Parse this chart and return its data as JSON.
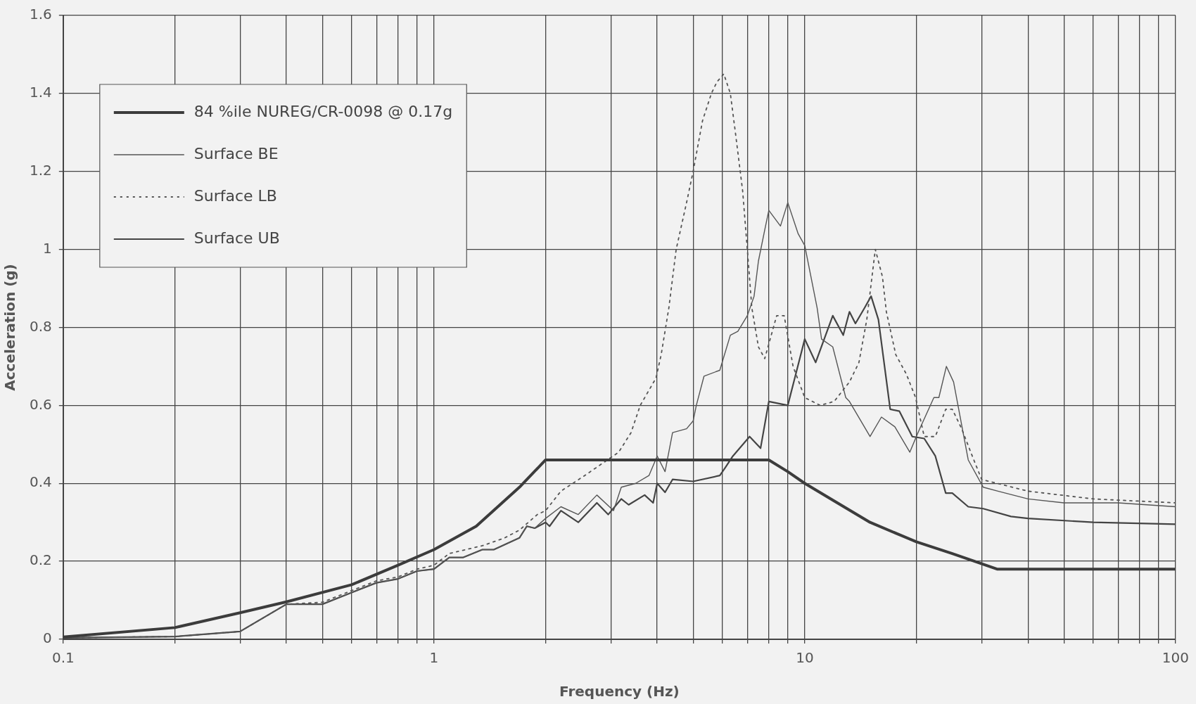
{
  "chart_data": {
    "type": "line",
    "xlabel": "Frequency (Hz)",
    "ylabel": "Acceleration (g)",
    "log": "x",
    "grid": true,
    "legend": "top left",
    "xlim": [
      0.1,
      100
    ],
    "ylim": [
      0,
      1.6
    ],
    "xticks": [
      0.1,
      {
        "value": 0.2,
        "label": null
      },
      {
        "value": 0.3,
        "label": null
      },
      {
        "value": 0.4,
        "label": null
      },
      {
        "value": 0.5,
        "label": null
      },
      {
        "value": 0.6,
        "label": null
      },
      {
        "value": 0.7,
        "label": null
      },
      {
        "value": 0.8,
        "label": null
      },
      {
        "value": 0.9,
        "label": null
      },
      1,
      {
        "value": 2,
        "label": null
      },
      {
        "value": 3,
        "label": null
      },
      {
        "value": 4,
        "label": null
      },
      {
        "value": 5,
        "label": null
      },
      {
        "value": 6,
        "label": null
      },
      {
        "value": 7,
        "label": null
      },
      {
        "value": 8,
        "label": null
      },
      {
        "value": 9,
        "label": null
      },
      10,
      {
        "value": 20,
        "label": null
      },
      {
        "value": 30,
        "label": null
      },
      {
        "value": 40,
        "label": null
      },
      {
        "value": 50,
        "label": null
      },
      {
        "value": 60,
        "label": null
      },
      {
        "value": 70,
        "label": null
      },
      {
        "value": 80,
        "label": null
      },
      {
        "value": 90,
        "label": null
      },
      100
    ],
    "yticks": [
      0,
      0.2,
      0.4,
      0.6,
      0.8,
      1,
      1.2,
      1.4,
      1.6
    ],
    "series": [
      {
        "name": "84 %ile NUREG/CR-0098 @ 0.17g",
        "color": "#3c3c3c",
        "line_style": "solid",
        "x": [
          0.1,
          0.2,
          0.3,
          0.4,
          0.6,
          0.8,
          1,
          1.3,
          1.7,
          2,
          8,
          9,
          10,
          12,
          15,
          20,
          25,
          33,
          100
        ],
        "values": [
          0.006,
          0.03,
          0.068,
          0.096,
          0.14,
          0.19,
          0.23,
          0.29,
          0.39,
          0.46,
          0.46,
          0.43,
          0.4,
          0.355,
          0.3,
          0.25,
          0.22,
          0.18,
          0.18
        ]
      },
      {
        "name": "Surface BE",
        "color": "#555555",
        "line_style": "solid",
        "x": [
          0.1,
          0.2,
          0.3,
          0.4,
          0.5,
          0.6,
          0.7,
          0.8,
          0.9,
          1,
          1.1,
          1.2,
          1.35,
          1.45,
          1.7,
          1.78,
          1.87,
          2,
          2.2,
          2.45,
          2.75,
          3.05,
          3.2,
          3.5,
          3.8,
          4,
          4.2,
          4.4,
          4.8,
          5,
          5.1,
          5.35,
          5.9,
          6.3,
          6.6,
          7,
          7.3,
          7.5,
          7.8,
          8,
          8.6,
          9,
          9.6,
          10,
          10.8,
          11.1,
          11.9,
          12.9,
          13.2,
          15,
          16.1,
          17.5,
          19.2,
          20.2,
          22.3,
          23,
          24.1,
          25.2,
          27.6,
          30.3,
          33.2,
          40,
          50,
          70,
          100
        ],
        "values": [
          0.004,
          0.007,
          0.02,
          0.09,
          0.09,
          0.12,
          0.145,
          0.155,
          0.175,
          0.18,
          0.21,
          0.21,
          0.23,
          0.23,
          0.26,
          0.29,
          0.285,
          0.31,
          0.34,
          0.32,
          0.37,
          0.33,
          0.39,
          0.4,
          0.42,
          0.47,
          0.43,
          0.53,
          0.54,
          0.56,
          0.6,
          0.675,
          0.69,
          0.78,
          0.79,
          0.83,
          0.88,
          0.97,
          1.05,
          1.1,
          1.06,
          1.12,
          1.04,
          1.01,
          0.85,
          0.77,
          0.75,
          0.62,
          0.61,
          0.52,
          0.57,
          0.545,
          0.48,
          0.53,
          0.62,
          0.62,
          0.7,
          0.66,
          0.46,
          0.39,
          0.38,
          0.36,
          0.35,
          0.35,
          0.34
        ]
      },
      {
        "name": "Surface LB",
        "color": "#555555",
        "line_style": "dotted",
        "x": [
          0.1,
          0.2,
          0.3,
          0.4,
          0.5,
          0.6,
          0.7,
          0.8,
          0.9,
          1,
          1.1,
          1.35,
          1.55,
          1.7,
          1.9,
          2,
          2.2,
          2.55,
          3.15,
          3.4,
          3.6,
          3.97,
          4.1,
          4.3,
          4.5,
          4.8,
          5,
          5.3,
          5.6,
          5.8,
          6.05,
          6.3,
          6.5,
          6.8,
          7,
          7.2,
          7.5,
          7.8,
          8.4,
          8.8,
          9.3,
          10,
          11,
          12,
          13.2,
          14,
          14.7,
          15.5,
          16.2,
          16.6,
          17.6,
          18.8,
          19.9,
          21,
          22.5,
          24,
          25,
          26.5,
          28.3,
          30,
          33,
          40,
          60,
          100
        ],
        "values": [
          0.004,
          0.007,
          0.02,
          0.09,
          0.095,
          0.125,
          0.15,
          0.16,
          0.18,
          0.19,
          0.22,
          0.24,
          0.26,
          0.28,
          0.32,
          0.33,
          0.38,
          0.42,
          0.48,
          0.53,
          0.6,
          0.67,
          0.73,
          0.85,
          1,
          1.12,
          1.2,
          1.33,
          1.4,
          1.43,
          1.45,
          1.4,
          1.3,
          1.15,
          1,
          0.85,
          0.75,
          0.72,
          0.83,
          0.83,
          0.7,
          0.62,
          0.6,
          0.61,
          0.66,
          0.71,
          0.82,
          1,
          0.93,
          0.84,
          0.73,
          0.68,
          0.62,
          0.52,
          0.52,
          0.59,
          0.59,
          0.54,
          0.47,
          0.41,
          0.4,
          0.38,
          0.36,
          0.35
        ]
      },
      {
        "name": "Surface UB",
        "color": "#444444",
        "line_style": "solid",
        "x": [
          0.1,
          0.2,
          0.3,
          0.4,
          0.5,
          0.6,
          0.7,
          0.8,
          0.9,
          1,
          1.1,
          1.2,
          1.35,
          1.45,
          1.7,
          1.78,
          1.87,
          2,
          2.05,
          2.2,
          2.45,
          2.75,
          2.95,
          3.2,
          3.35,
          3.7,
          3.9,
          4,
          4.2,
          4.4,
          5,
          5.9,
          6.1,
          6.4,
          7.1,
          7.6,
          8,
          9,
          9.4,
          10,
          10.7,
          11.9,
          12.7,
          13.2,
          13.7,
          14.5,
          15.1,
          15.8,
          17,
          18,
          19.5,
          21,
          22.5,
          24,
          25,
          27.6,
          30.3,
          36,
          40,
          60,
          100
        ],
        "values": [
          0.004,
          0.007,
          0.02,
          0.09,
          0.09,
          0.12,
          0.145,
          0.155,
          0.175,
          0.18,
          0.21,
          0.21,
          0.23,
          0.23,
          0.26,
          0.29,
          0.285,
          0.3,
          0.29,
          0.33,
          0.3,
          0.35,
          0.32,
          0.36,
          0.345,
          0.37,
          0.35,
          0.4,
          0.377,
          0.41,
          0.405,
          0.42,
          0.44,
          0.47,
          0.52,
          0.49,
          0.61,
          0.6,
          0.67,
          0.77,
          0.71,
          0.83,
          0.78,
          0.84,
          0.81,
          0.85,
          0.88,
          0.82,
          0.59,
          0.585,
          0.52,
          0.515,
          0.47,
          0.375,
          0.375,
          0.34,
          0.335,
          0.315,
          0.31,
          0.3,
          0.295
        ]
      }
    ]
  }
}
